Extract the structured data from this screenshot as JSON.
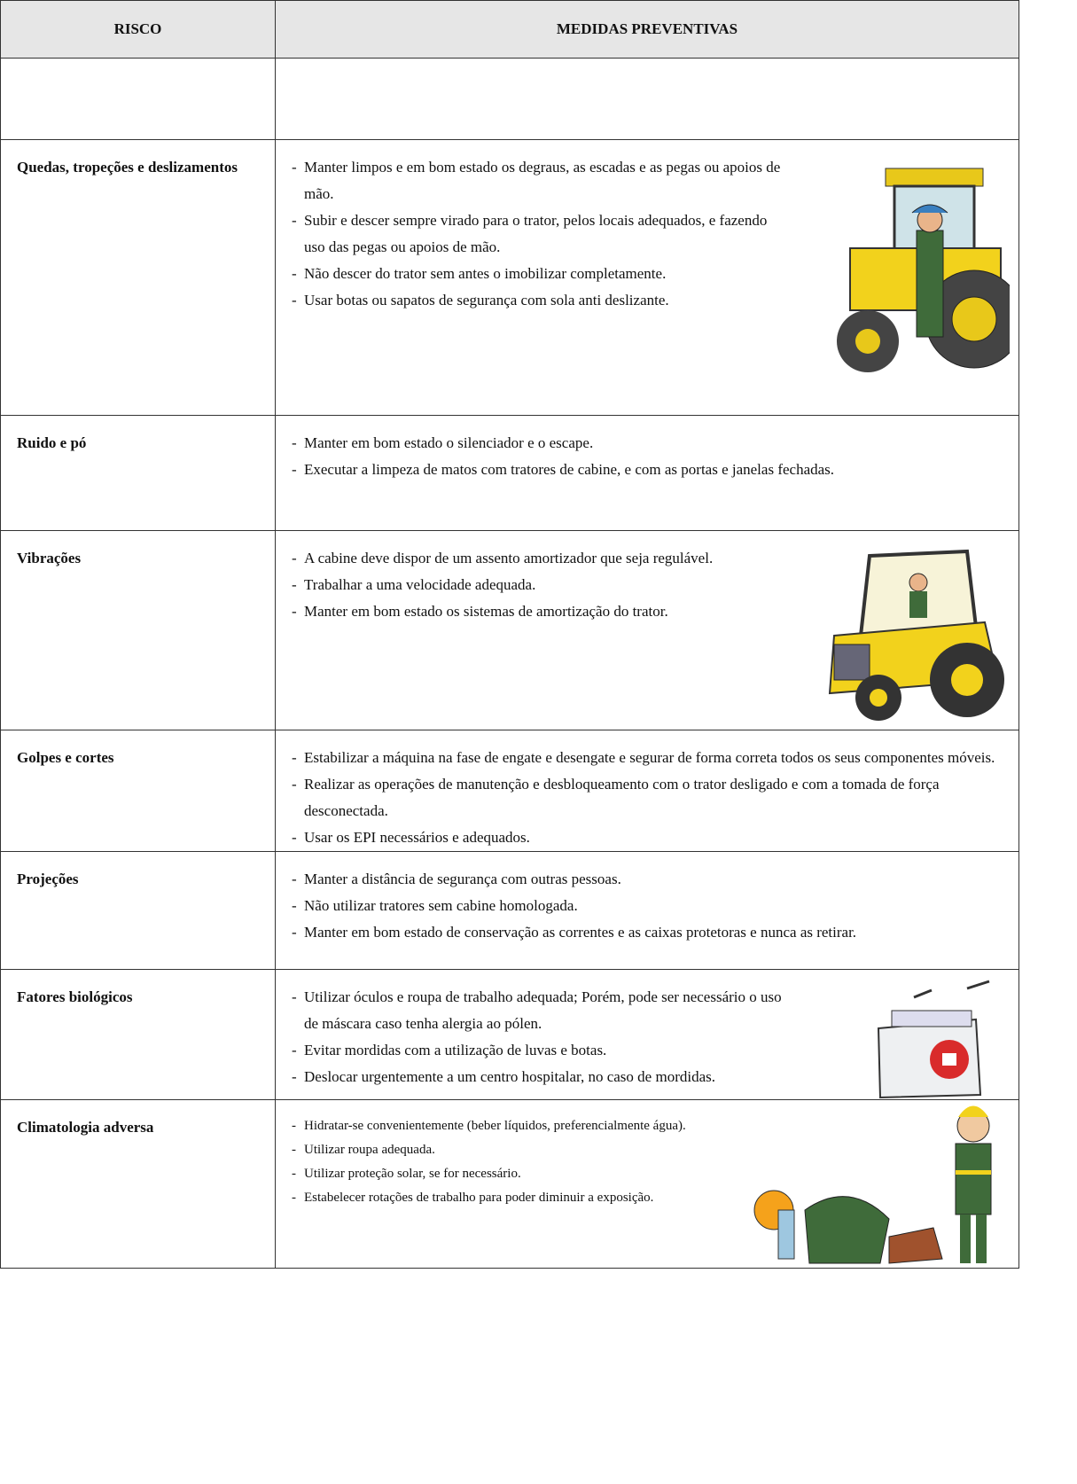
{
  "header": {
    "columns": [
      "RISCO",
      "MEDIDAS PREVENTIVAS"
    ]
  },
  "table": {
    "rows": [
      {
        "risk": "Quedas, tropeções e deslizamentos",
        "measures": [
          "Manter limpos e em bom estado os degraus, as escadas e as pegas ou apoios de mão.",
          "Subir e descer sempre virado para o trator, pelos locais adequados, e fazendo uso das pegas ou apoios de mão.",
          "Não descer do trator sem antes o imobilizar completamente.",
          "Usar botas ou sapatos de segurança com sola anti deslizante."
        ]
      },
      {
        "risk": "Ruido e pó",
        "measures": [
          "Manter em bom estado o silenciador e o escape.",
          "Executar a limpeza de matos com tratores de cabine, e com as portas e janelas fechadas."
        ]
      },
      {
        "risk": "Vibrações",
        "measures": [
          "A cabine deve dispor de um assento amortizador que seja regulável.",
          "Trabalhar a uma velocidade adequada.",
          "Manter em bom estado os sistemas de amortização do trator."
        ]
      },
      {
        "risk": "Golpes e cortes",
        "measures": [
          "Estabilizar a máquina na fase de engate e desengate e segurar de forma correta todos os seus componentes móveis.",
          "Realizar as operações de manutenção e desbloqueamento com o trator desligado e com a tomada de força desconectada.",
          "Usar os EPI necessários e adequados."
        ]
      },
      {
        "risk": "Projeções",
        "measures": [
          "Manter a distância de segurança com outras pessoas.",
          "Não utilizar tratores sem cabine homologada.",
          "Manter em bom estado de conservação as correntes e as caixas protetoras e nunca as retirar."
        ]
      },
      {
        "risk": "Fatores biológicos",
        "measures": [
          "Utilizar óculos e roupa de trabalho adequada; Porém, pode ser necessário o uso de máscara caso tenha alergia ao pólen.",
          "Evitar mordidas com a utilização de luvas e botas.",
          "Deslocar urgentemente a um centro hospitalar, no caso de mordidas."
        ]
      },
      {
        "risk": "Climatologia adversa",
        "measures": [
          "Hidratar-se convenientemente (beber líquidos, preferencialmente água).",
          "Utilizar roupa adequada.",
          "Utilizar proteção solar, se for necessário.",
          "Estabelecer rotações de trabalho para poder diminuir a exposição."
        ]
      }
    ]
  }
}
